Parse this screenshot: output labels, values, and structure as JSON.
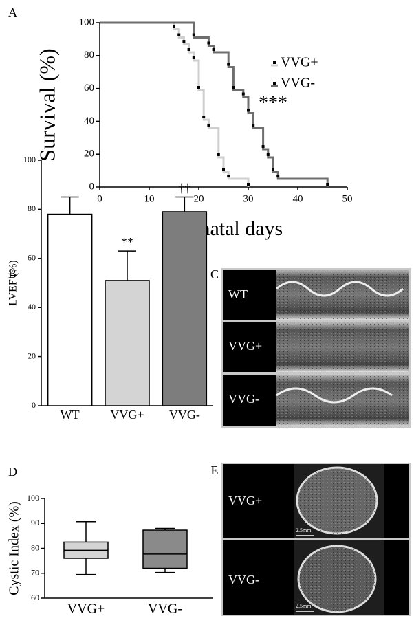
{
  "chart_data": [
    {
      "type": "line",
      "panel_label": "A",
      "ylabel": "Survival (%)",
      "xlabel": "Postnatal days",
      "annotation": "***",
      "xlim": [
        0,
        50
      ],
      "xticks": [
        0,
        10,
        20,
        30,
        40,
        50
      ],
      "ylim": [
        0,
        100
      ],
      "yticks": [
        0,
        20,
        40,
        60,
        80,
        100
      ],
      "series": [
        {
          "name": "VVG+",
          "color": "#cfcfcf",
          "x": [
            0,
            15,
            16,
            17,
            18,
            19,
            20,
            21,
            22,
            24,
            25,
            26,
            30
          ],
          "values": [
            100,
            96,
            91,
            87,
            82,
            77,
            59,
            41,
            36,
            18,
            9,
            5,
            0
          ]
        },
        {
          "name": "VVG-",
          "color": "#6e6e6e",
          "x": [
            0,
            19,
            22,
            23,
            26,
            27,
            29,
            30,
            31,
            33,
            34,
            35,
            36,
            46
          ],
          "values": [
            100,
            91,
            86,
            82,
            73,
            59,
            55,
            45,
            36,
            23,
            18,
            9,
            5,
            0
          ]
        }
      ]
    },
    {
      "type": "bar",
      "panel_label": "B",
      "ylabel": "LVEF (%)",
      "categories": [
        "WT",
        "VVG+",
        "VVG-"
      ],
      "values": [
        78,
        51,
        79
      ],
      "errors": [
        7,
        12,
        6
      ],
      "colors": [
        "#ffffff",
        "#d4d4d4",
        "#7d7d7d"
      ],
      "annotations": [
        null,
        "**",
        "††"
      ],
      "ylim": [
        0,
        100
      ],
      "yticks": [
        0,
        20,
        40,
        60,
        80,
        100
      ]
    },
    {
      "type": "box",
      "panel_label": "D",
      "ylabel": "Cystic Index (%)",
      "categories": [
        "VVG+",
        "VVG-"
      ],
      "min": [
        69.5,
        70.3
      ],
      "q1": [
        76,
        72
      ],
      "median": [
        79.2,
        77.7
      ],
      "q3": [
        82.5,
        87.3
      ],
      "max": [
        90.7,
        88
      ],
      "colors": [
        "#d4d4d4",
        "#8a8a8a"
      ],
      "ylim": [
        60,
        100
      ],
      "yticks": [
        60,
        70,
        80,
        90,
        100
      ]
    }
  ],
  "panel_c": {
    "label": "C",
    "rows": [
      "WT",
      "VVG+",
      "VVG-"
    ]
  },
  "panel_e": {
    "label": "E",
    "rows": [
      "VVG+",
      "VVG-"
    ],
    "scale_bar": "2.5mm"
  }
}
